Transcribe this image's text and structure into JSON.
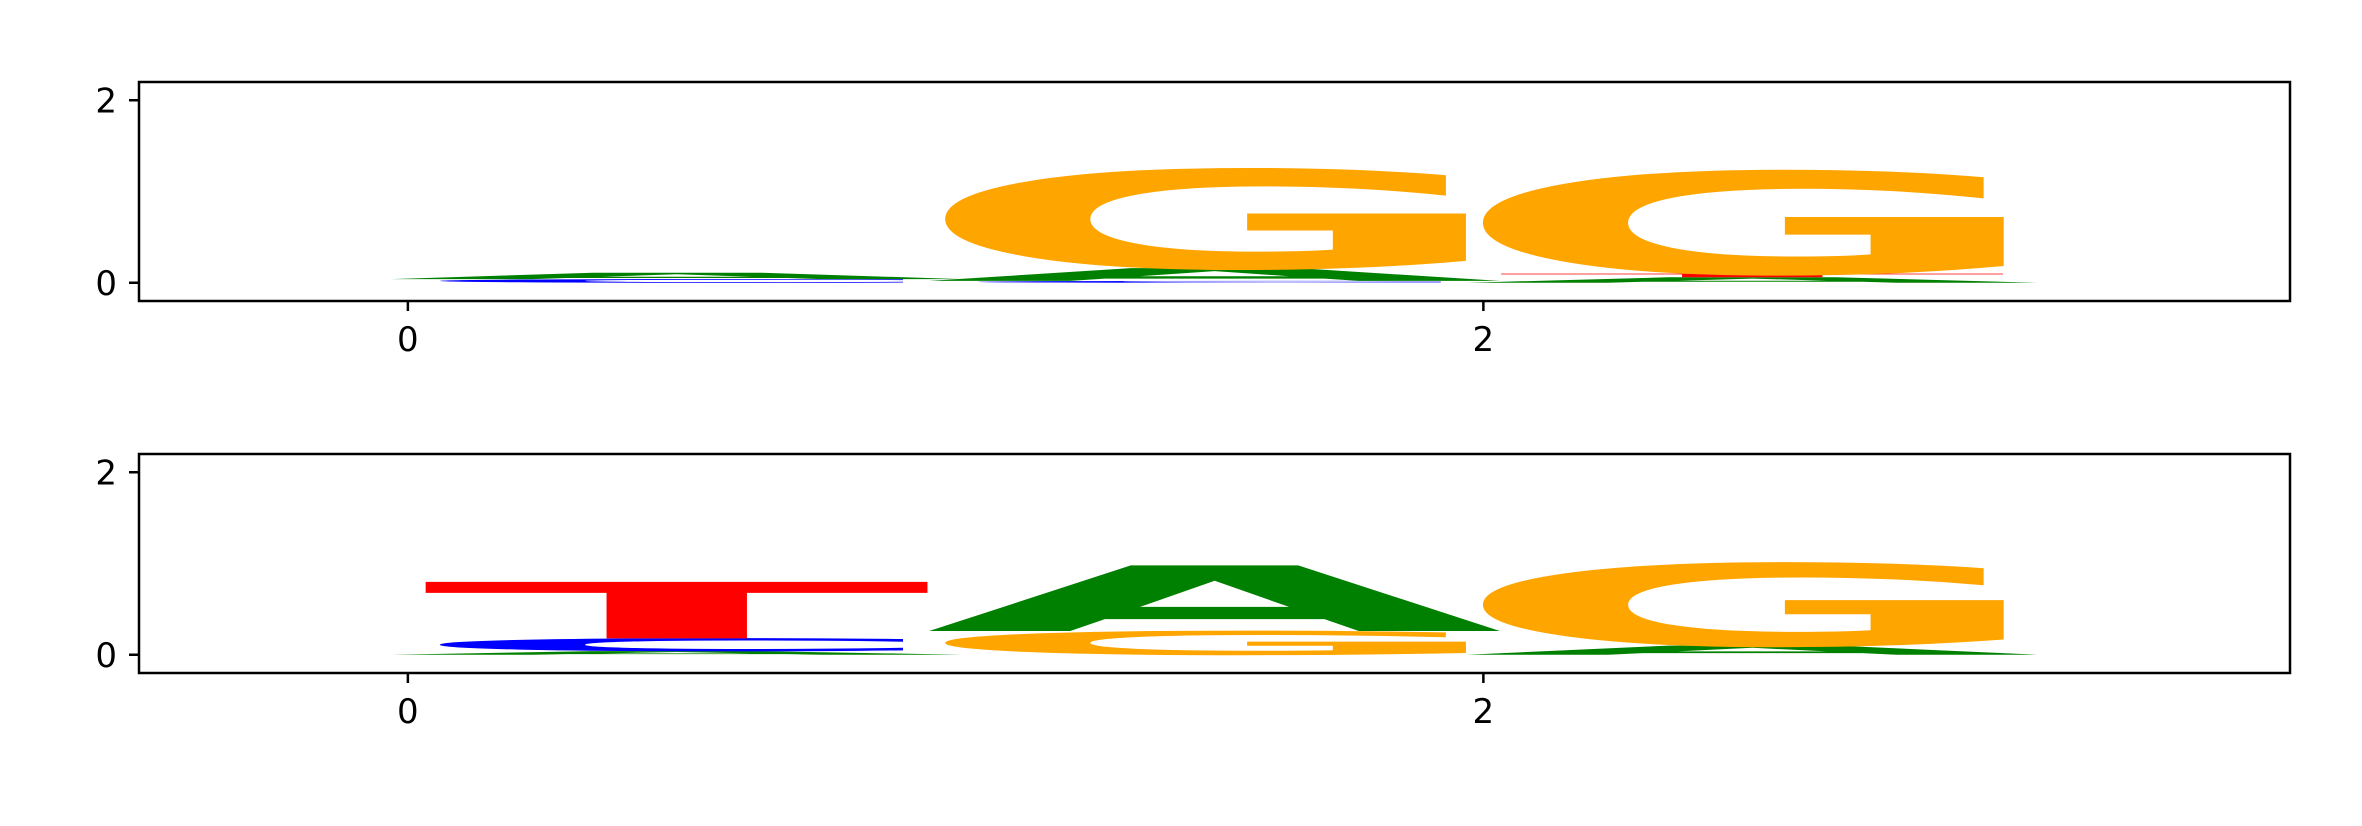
{
  "colors": {
    "A": "#008000",
    "C": "#0000ff",
    "G": "#ffa500",
    "T": "#ff0000"
  },
  "chart_data": [
    {
      "type": "sequence-logo",
      "xlim": [
        -0.5,
        3.5
      ],
      "ylim": [
        -0.2,
        2.2
      ],
      "xticks": [
        0,
        2
      ],
      "xtick_labels": [
        "0",
        "2"
      ],
      "yticks": [
        0,
        2
      ],
      "ytick_labels": [
        "0",
        "2"
      ],
      "positions": [
        {
          "x": 0,
          "letters": [
            {
              "base": "C",
              "height": 0.04
            },
            {
              "base": "A",
              "height": 0.07
            }
          ]
        },
        {
          "x": 1,
          "letters": [
            {
              "base": "C",
              "height": 0.02
            },
            {
              "base": "A",
              "height": 0.14
            },
            {
              "base": "G",
              "height": 1.08
            }
          ]
        },
        {
          "x": 2,
          "letters": [
            {
              "base": "A",
              "height": 0.06
            },
            {
              "base": "T",
              "height": 0.04
            },
            {
              "base": "G",
              "height": 1.12
            }
          ]
        }
      ]
    },
    {
      "type": "sequence-logo",
      "xlim": [
        -0.5,
        3.5
      ],
      "ylim": [
        -0.2,
        2.2
      ],
      "xticks": [
        0,
        2
      ],
      "xtick_labels": [
        "0",
        "2"
      ],
      "yticks": [
        0,
        2
      ],
      "ytick_labels": [
        "0",
        "2"
      ],
      "positions": [
        {
          "x": 0,
          "letters": [
            {
              "base": "A",
              "height": 0.04
            },
            {
              "base": "C",
              "height": 0.14
            },
            {
              "base": "T",
              "height": 0.62
            }
          ]
        },
        {
          "x": 1,
          "letters": [
            {
              "base": "G",
              "height": 0.26
            },
            {
              "base": "A",
              "height": 0.72
            }
          ]
        },
        {
          "x": 2,
          "letters": [
            {
              "base": "A",
              "height": 0.1
            },
            {
              "base": "G",
              "height": 0.9
            }
          ]
        }
      ]
    }
  ]
}
